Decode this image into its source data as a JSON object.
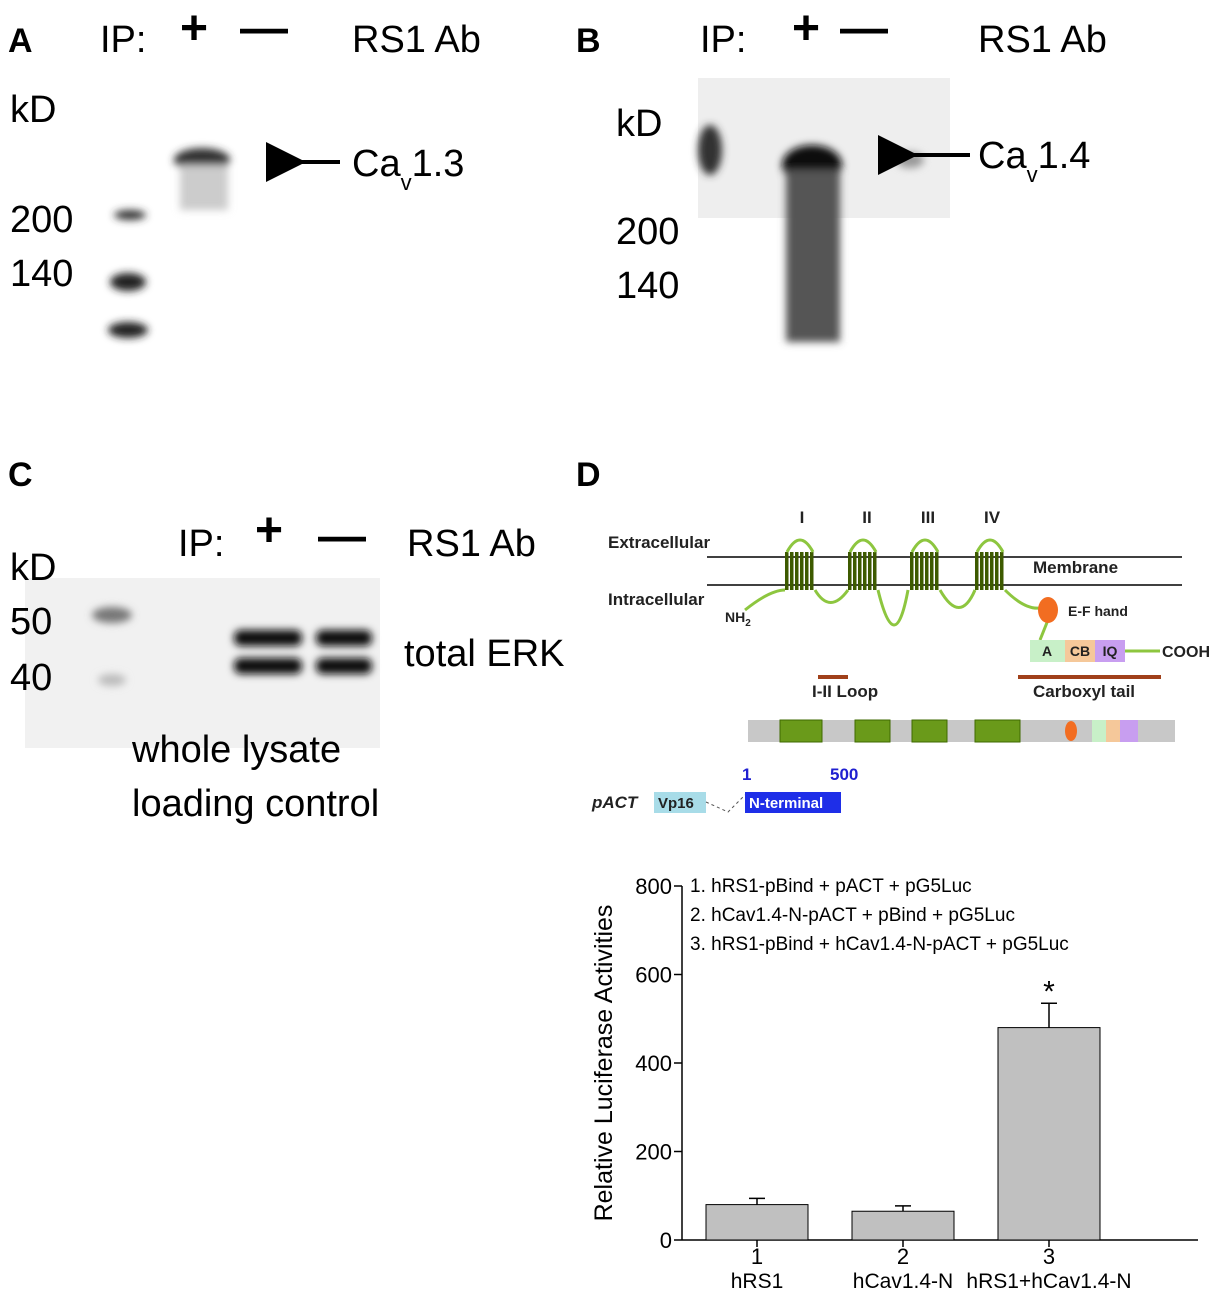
{
  "panel_a": {
    "label": "A",
    "ip": "IP:",
    "plus": "+",
    "minus": "—",
    "antibody": "RS1 Ab",
    "unit": "kD",
    "markers": [
      "200",
      "140"
    ],
    "band_name": "Ca",
    "band_sub": "v",
    "band_suffix": "1.3"
  },
  "panel_b": {
    "label": "B",
    "ip": "IP:",
    "plus": "+",
    "minus": "—",
    "antibody": "RS1 Ab",
    "unit": "kD",
    "markers": [
      "200",
      "140"
    ],
    "band_name": "Ca",
    "band_sub": "v",
    "band_suffix": "1.4"
  },
  "panel_c": {
    "label": "C",
    "ip": "IP:",
    "plus": "+",
    "minus": "—",
    "antibody": "RS1 Ab",
    "unit": "kD",
    "markers": [
      "50",
      "40"
    ],
    "band": "total ERK",
    "caption": [
      "whole lysate",
      "loading control"
    ]
  },
  "panel_d": {
    "label": "D",
    "domains": [
      "I",
      "II",
      "III",
      "IV"
    ],
    "extracellular": "Extracellular",
    "intracellular": "Intracellular",
    "membrane": "Membrane",
    "nh2": "NH",
    "nh2_sub": "2",
    "ef_hand": "E-F hand",
    "motifs": [
      "A",
      "CB",
      "IQ"
    ],
    "cooh": "COOH",
    "loop": "I-II Loop",
    "tail": "Carboxyl tail",
    "start": "1",
    "end": "500",
    "vector": "pACT",
    "vp16": "Vp16",
    "fragment": "N-terminal"
  },
  "chart_data": {
    "type": "bar",
    "ylabel": "Relative Luciferase Activities",
    "categories": [
      "1",
      "2",
      "3"
    ],
    "category_names": [
      "hRS1",
      "hCav1.4-N",
      "hRS1+hCav1.4-N"
    ],
    "values": [
      80,
      65,
      480
    ],
    "errors": [
      14,
      12,
      55
    ],
    "color": "#c0c0c0",
    "ylim": [
      0,
      800
    ],
    "yticks": [
      0,
      200,
      400,
      600,
      800
    ],
    "legend": [
      "1. hRS1-pBind + pACT + pG5Luc",
      "2. hCav1.4-N-pACT + pBind + pG5Luc",
      "3. hRS1-pBind + hCav1.4-N-pACT + pG5Luc"
    ],
    "annotation": "*"
  }
}
